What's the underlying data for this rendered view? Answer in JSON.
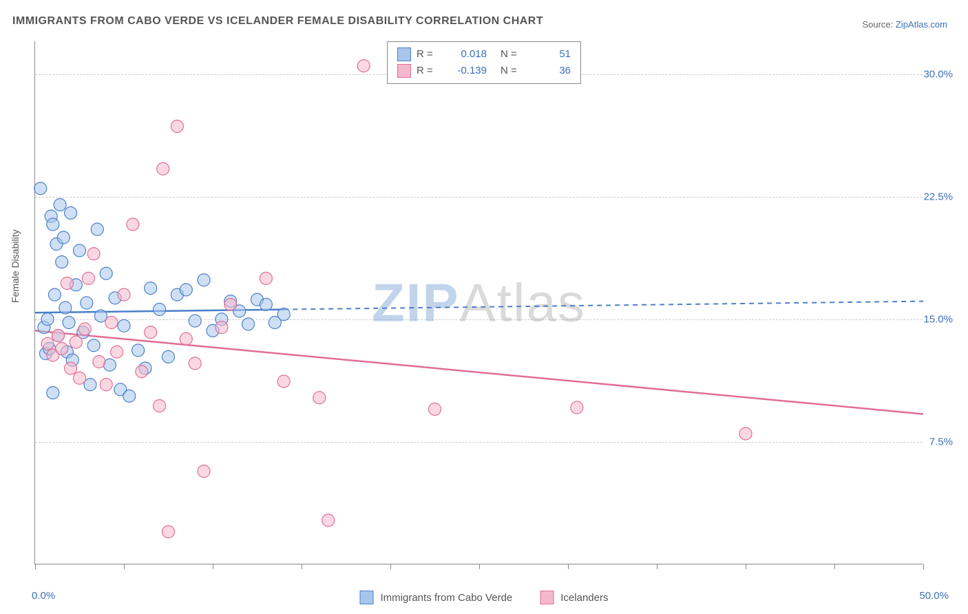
{
  "title": "IMMIGRANTS FROM CABO VERDE VS ICELANDER FEMALE DISABILITY CORRELATION CHART",
  "source_label": "Source:",
  "source_name": "ZipAtlas.com",
  "ylabel": "Female Disability",
  "watermark_a": "ZIP",
  "watermark_b": "Atlas",
  "chart": {
    "type": "scatter",
    "xlim": [
      0,
      50
    ],
    "ylim": [
      0,
      32
    ],
    "x_ticks": [
      0,
      5,
      10,
      15,
      20,
      25,
      30,
      35,
      40,
      45,
      50
    ],
    "x_tick_labels": {
      "0": "0.0%",
      "50": "50.0%"
    },
    "y_gridlines": [
      7.5,
      15.0,
      22.5,
      30.0
    ],
    "y_tick_labels": [
      "7.5%",
      "15.0%",
      "22.5%",
      "30.0%"
    ],
    "grid_color": "#cccccc",
    "axis_color": "#888888",
    "background_color": "#ffffff",
    "marker_radius": 9,
    "marker_opacity": 0.55,
    "series": [
      {
        "name": "Immigrants from Cabo Verde",
        "color_fill": "#a8c6ec",
        "color_stroke": "#4a7fc9",
        "R": "0.018",
        "N": "51",
        "trend": {
          "y_at_x0": 15.4,
          "y_at_x50": 16.1,
          "solid_until_x": 14
        },
        "points": [
          [
            0.3,
            23.0
          ],
          [
            0.5,
            14.5
          ],
          [
            0.6,
            12.9
          ],
          [
            0.7,
            15.0
          ],
          [
            0.8,
            13.2
          ],
          [
            0.9,
            21.3
          ],
          [
            1.0,
            20.8
          ],
          [
            1.1,
            16.5
          ],
          [
            1.2,
            19.6
          ],
          [
            1.3,
            14.0
          ],
          [
            1.4,
            22.0
          ],
          [
            1.5,
            18.5
          ],
          [
            1.6,
            20.0
          ],
          [
            1.7,
            15.7
          ],
          [
            1.8,
            13.0
          ],
          [
            1.9,
            14.8
          ],
          [
            2.0,
            21.5
          ],
          [
            2.1,
            12.5
          ],
          [
            2.3,
            17.1
          ],
          [
            2.5,
            19.2
          ],
          [
            2.7,
            14.2
          ],
          [
            2.9,
            16.0
          ],
          [
            3.1,
            11.0
          ],
          [
            3.3,
            13.4
          ],
          [
            3.5,
            20.5
          ],
          [
            3.7,
            15.2
          ],
          [
            4.0,
            17.8
          ],
          [
            4.2,
            12.2
          ],
          [
            4.5,
            16.3
          ],
          [
            4.8,
            10.7
          ],
          [
            5.0,
            14.6
          ],
          [
            5.3,
            10.3
          ],
          [
            5.8,
            13.1
          ],
          [
            6.2,
            12.0
          ],
          [
            6.5,
            16.9
          ],
          [
            7.0,
            15.6
          ],
          [
            7.5,
            12.7
          ],
          [
            8.0,
            16.5
          ],
          [
            8.5,
            16.8
          ],
          [
            9.0,
            14.9
          ],
          [
            9.5,
            17.4
          ],
          [
            10.0,
            14.3
          ],
          [
            10.5,
            15.0
          ],
          [
            11.0,
            16.1
          ],
          [
            11.5,
            15.5
          ],
          [
            12.0,
            14.7
          ],
          [
            12.5,
            16.2
          ],
          [
            13.0,
            15.9
          ],
          [
            13.5,
            14.8
          ],
          [
            14.0,
            15.3
          ],
          [
            1.0,
            10.5
          ]
        ]
      },
      {
        "name": "Icelanders",
        "color_fill": "#f5b8ca",
        "color_stroke": "#e26d93",
        "R": "-0.139",
        "N": "36",
        "trend": {
          "y_at_x0": 14.3,
          "y_at_x50": 9.2,
          "solid_until_x": 50
        },
        "points": [
          [
            0.7,
            13.5
          ],
          [
            1.0,
            12.8
          ],
          [
            1.3,
            14.0
          ],
          [
            1.5,
            13.2
          ],
          [
            1.8,
            17.2
          ],
          [
            2.0,
            12.0
          ],
          [
            2.3,
            13.6
          ],
          [
            2.5,
            11.4
          ],
          [
            2.8,
            14.4
          ],
          [
            3.0,
            17.5
          ],
          [
            3.3,
            19.0
          ],
          [
            3.6,
            12.4
          ],
          [
            4.0,
            11.0
          ],
          [
            4.3,
            14.8
          ],
          [
            4.6,
            13.0
          ],
          [
            5.0,
            16.5
          ],
          [
            5.5,
            20.8
          ],
          [
            6.0,
            11.8
          ],
          [
            6.5,
            14.2
          ],
          [
            7.0,
            9.7
          ],
          [
            7.2,
            24.2
          ],
          [
            7.5,
            2.0
          ],
          [
            8.0,
            26.8
          ],
          [
            8.5,
            13.8
          ],
          [
            9.0,
            12.3
          ],
          [
            9.5,
            5.7
          ],
          [
            10.5,
            14.5
          ],
          [
            11.0,
            15.9
          ],
          [
            13.0,
            17.5
          ],
          [
            14.0,
            11.2
          ],
          [
            16.0,
            10.2
          ],
          [
            16.5,
            2.7
          ],
          [
            22.5,
            9.5
          ],
          [
            30.5,
            9.6
          ],
          [
            40.0,
            8.0
          ],
          [
            18.5,
            30.5
          ]
        ]
      }
    ]
  },
  "legend_top": {
    "r_label": "R  =",
    "n_label": "N  ="
  }
}
